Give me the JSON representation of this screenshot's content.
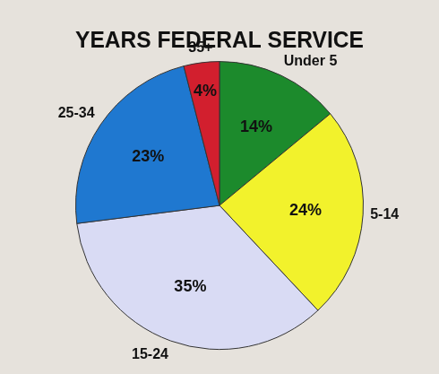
{
  "chart_data": {
    "type": "pie",
    "title": "YEARS FEDERAL SERVICE",
    "categories": [
      "Under 5",
      "5-14",
      "15-24",
      "25-34",
      "35+"
    ],
    "values": [
      14,
      24,
      35,
      23,
      4
    ],
    "value_labels": [
      "14%",
      "24%",
      "35%",
      "23%",
      "4%"
    ],
    "colors": [
      "#1c8a2c",
      "#f2f22c",
      "#d9dbf4",
      "#1f78d0",
      "#d21f2e"
    ],
    "data_labels": true
  }
}
